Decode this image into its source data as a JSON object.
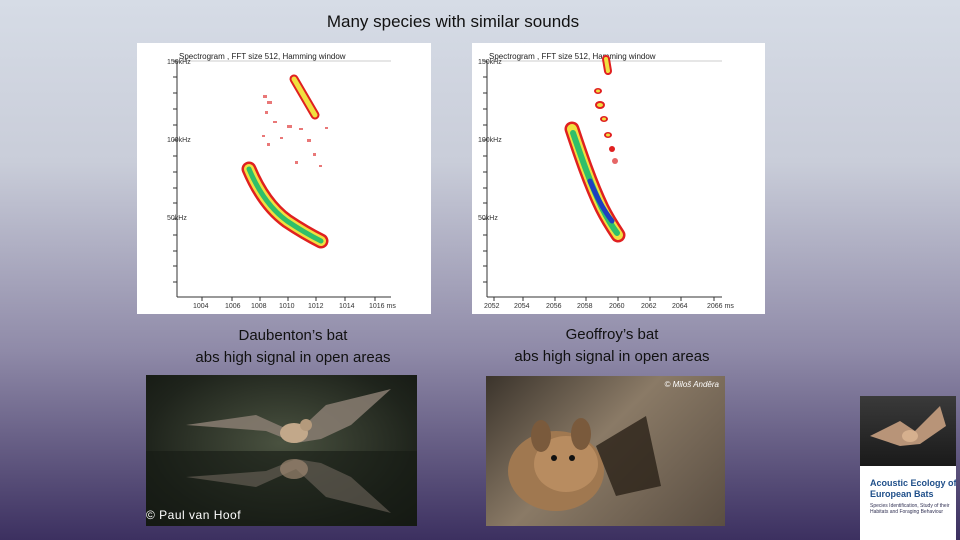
{
  "slide": {
    "title": "Many species with similar sounds"
  },
  "left_panel": {
    "spectrogram_title": "Spectrogram , FFT size 512, Hamming window",
    "y_ticks": [
      "150kHz",
      "100kHz",
      "50kHz"
    ],
    "x_ticks": [
      "1004",
      "1006",
      "1008",
      "1010",
      "1012",
      "1014",
      "1016 ms"
    ],
    "caption_line1": "Daubenton’s bat",
    "caption_line2": "abs high signal in open areas",
    "photo_credit": "© Paul van Hoof"
  },
  "right_panel": {
    "spectrogram_title": "Spectrogram , FFT size 512, Hamming window",
    "y_ticks": [
      "150kHz",
      "100kHz",
      "50kHz"
    ],
    "x_ticks": [
      "2052",
      "2054",
      "2056",
      "2058",
      "2060",
      "2062",
      "2064",
      "2066 ms"
    ],
    "caption_line1": "Geoffroy’s bat",
    "caption_line2": "abs high signal in open areas",
    "photo_credit": "© Miloš Anděra"
  },
  "book": {
    "title": "Acoustic Ecology of European Bats",
    "subtitle": "Species Identification, Study of their Habitats and Foraging Behaviour"
  },
  "colors": {
    "signal_high": "#1e3fbf",
    "signal_mid": "#2fbf6a",
    "signal_low": "#e0e83c",
    "signal_edge": "#d81818"
  }
}
